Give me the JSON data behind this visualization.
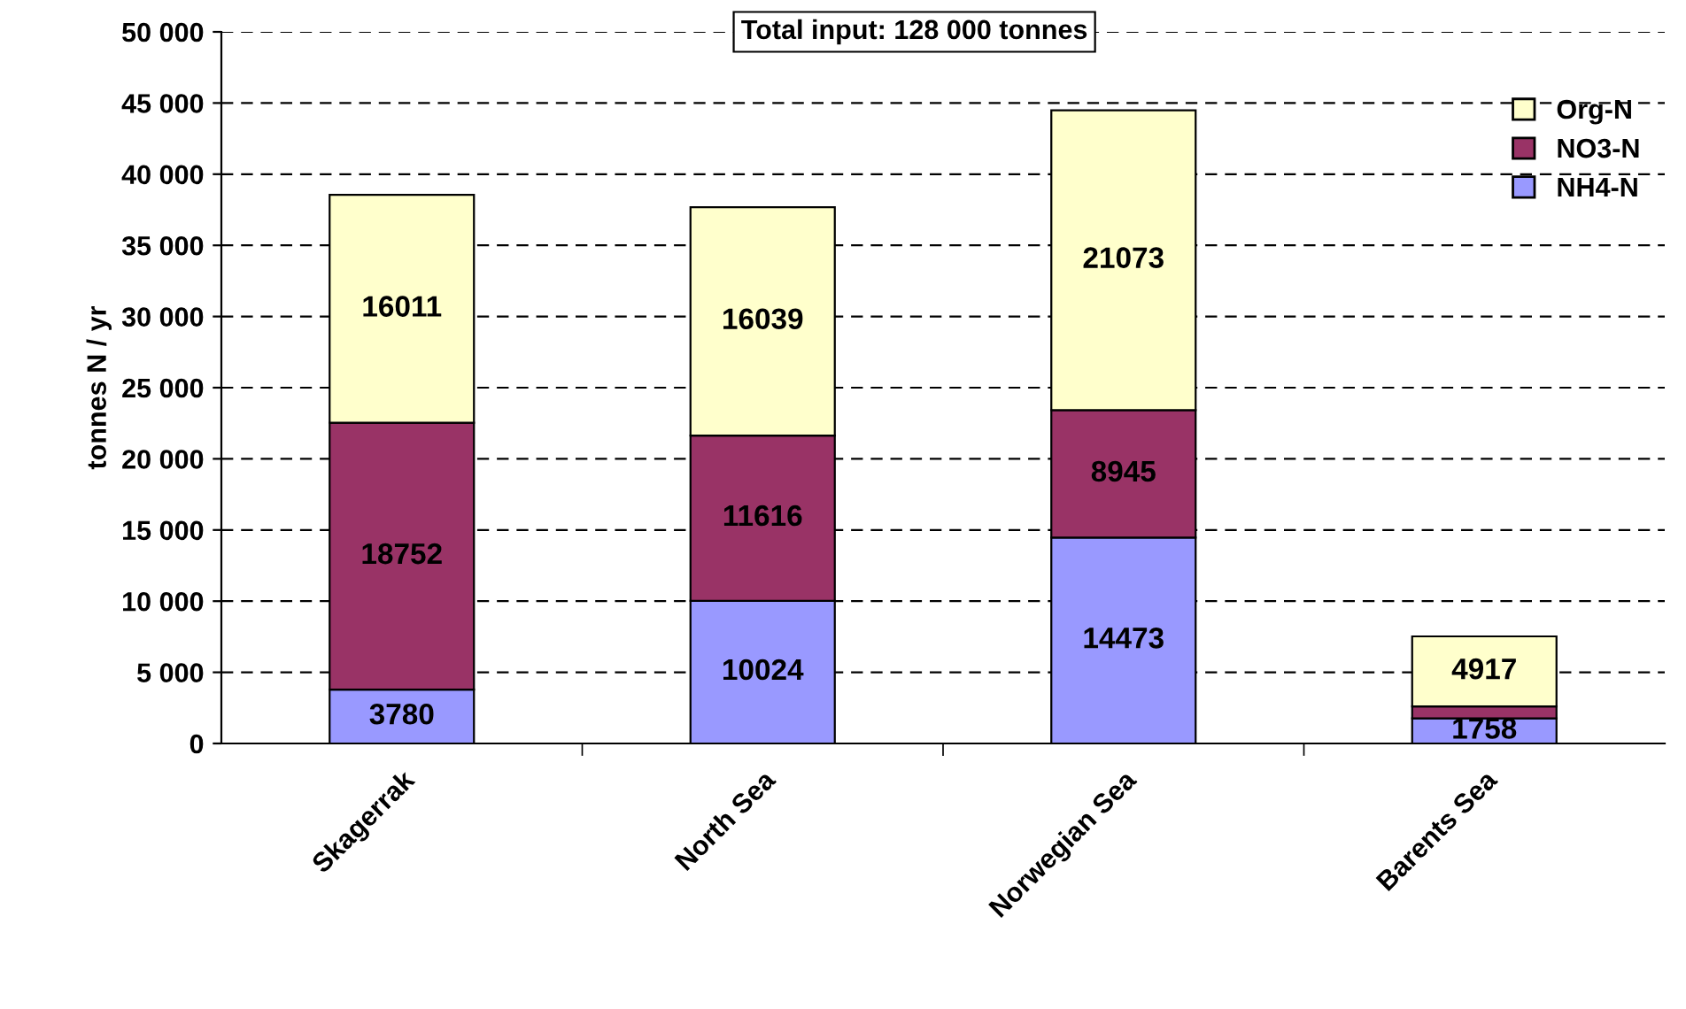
{
  "chart_data": {
    "type": "bar",
    "stacked": true,
    "categories": [
      "Skagerrak",
      "North Sea",
      "Norwegian Sea",
      "Barents Sea"
    ],
    "series": [
      {
        "name": "NH4-N",
        "color": "#9999ff",
        "values": [
          3780,
          10024,
          14473,
          1758
        ],
        "value_labels": [
          "3780",
          "10024",
          "14473",
          "1758"
        ]
      },
      {
        "name": "NO3-N",
        "color": "#993366",
        "values": [
          18752,
          11616,
          8945,
          850
        ],
        "value_labels": [
          "18752",
          "11616",
          "8945",
          null
        ]
      },
      {
        "name": "Org-N",
        "color": "#ffffcc",
        "values": [
          16011,
          16039,
          21073,
          4917
        ],
        "value_labels": [
          "16011",
          "16039",
          "21073",
          "4917"
        ]
      }
    ],
    "ylabel": "tonnes N / yr",
    "ylim": [
      0,
      50000
    ],
    "yticks": [
      {
        "value": 0,
        "label": "0"
      },
      {
        "value": 5000,
        "label": "5 000"
      },
      {
        "value": 10000,
        "label": "10 000"
      },
      {
        "value": 15000,
        "label": "15 000"
      },
      {
        "value": 20000,
        "label": "20 000"
      },
      {
        "value": 25000,
        "label": "25 000"
      },
      {
        "value": 30000,
        "label": "30 000"
      },
      {
        "value": 35000,
        "label": "35 000"
      },
      {
        "value": 40000,
        "label": "40 000"
      },
      {
        "value": 45000,
        "label": "45 000"
      },
      {
        "value": 50000,
        "label": "50 000"
      }
    ],
    "grid": "y",
    "legend": "top right",
    "annotations": [
      "Total input: 128 000 tonnes"
    ]
  }
}
